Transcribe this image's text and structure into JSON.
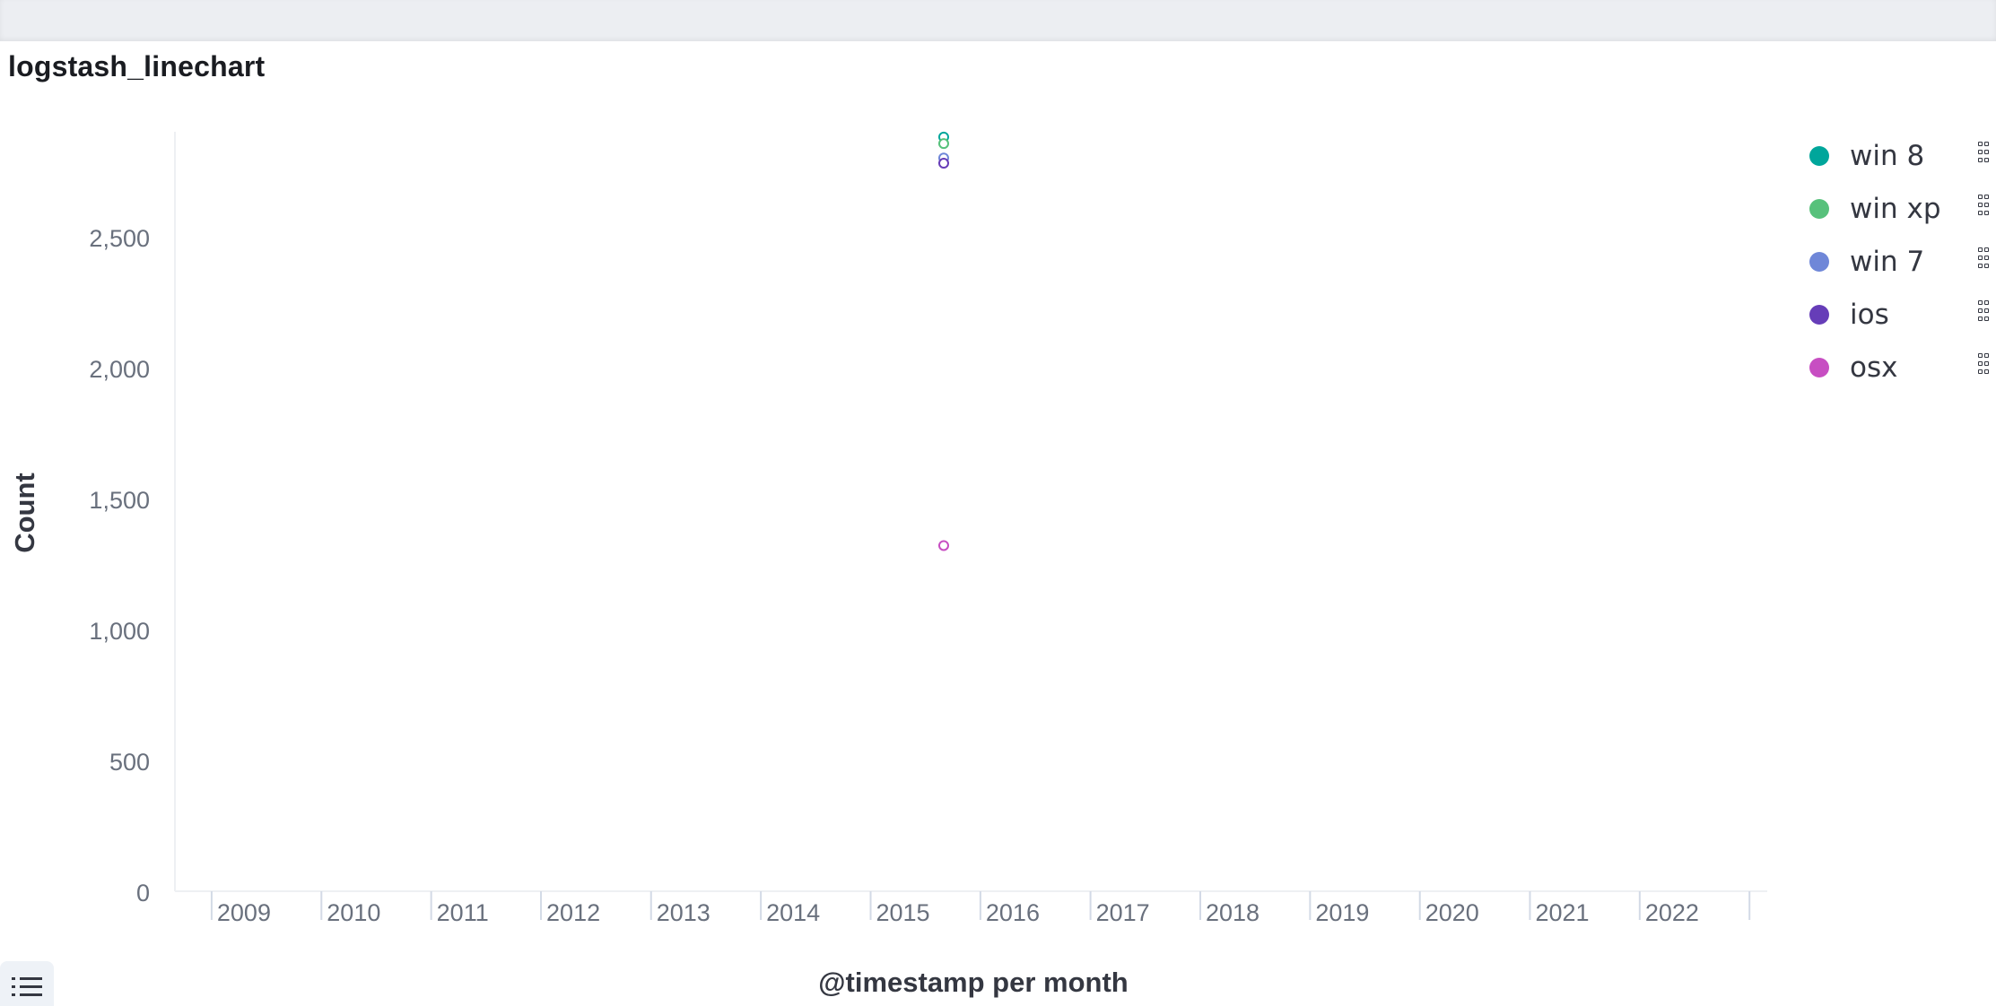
{
  "panel": {
    "title": "logstash_linechart"
  },
  "chart_data": {
    "type": "line",
    "xlabel": "@timestamp per month",
    "ylabel": "Count",
    "x_range": [
      "2008-09-01",
      "2023-03-01"
    ],
    "ylim": [
      0,
      2900
    ],
    "y_ticks": [
      0,
      500,
      1000,
      1500,
      2000,
      2500
    ],
    "y_tick_labels": [
      "0",
      "500",
      "1,000",
      "1,500",
      "2,000",
      "2,500"
    ],
    "x_ticks": [
      "2009-01-01",
      "2010-01-01",
      "2011-01-01",
      "2012-01-01",
      "2013-01-01",
      "2014-01-01",
      "2015-01-01",
      "2016-01-01",
      "2017-01-01",
      "2018-01-01",
      "2019-01-01",
      "2020-01-01",
      "2021-01-01",
      "2022-01-01",
      "2023-01-01"
    ],
    "x_tick_labels": [
      "2009",
      "2010",
      "2011",
      "2012",
      "2013",
      "2014",
      "2015",
      "2016",
      "2017",
      "2018",
      "2019",
      "2020",
      "2021",
      "2022",
      ""
    ],
    "grid": false,
    "legend_position": "right",
    "series": [
      {
        "name": "win 8",
        "color": "#00a69b",
        "points": [
          {
            "x": "2015-09-01",
            "y": 2880
          }
        ]
      },
      {
        "name": "win xp",
        "color": "#57c17b",
        "points": [
          {
            "x": "2015-09-01",
            "y": 2855
          }
        ]
      },
      {
        "name": "win 7",
        "color": "#6f87d8",
        "points": [
          {
            "x": "2015-09-01",
            "y": 2800
          }
        ]
      },
      {
        "name": "ios",
        "color": "#663db8",
        "points": [
          {
            "x": "2015-09-01",
            "y": 2780
          }
        ]
      },
      {
        "name": "osx",
        "color": "#c74ec2",
        "points": [
          {
            "x": "2015-09-01",
            "y": 1320
          }
        ]
      }
    ]
  },
  "legend": {
    "items": [
      {
        "label": "win 8",
        "color": "#00a69b"
      },
      {
        "label": "win xp",
        "color": "#57c17b"
      },
      {
        "label": "win 7",
        "color": "#6f87d8"
      },
      {
        "label": "ios",
        "color": "#663db8"
      },
      {
        "label": "osx",
        "color": "#c74ec2"
      }
    ]
  },
  "icons": {
    "legend_toggle": "list-icon",
    "legend_item_action": "grab-handle-icon"
  }
}
